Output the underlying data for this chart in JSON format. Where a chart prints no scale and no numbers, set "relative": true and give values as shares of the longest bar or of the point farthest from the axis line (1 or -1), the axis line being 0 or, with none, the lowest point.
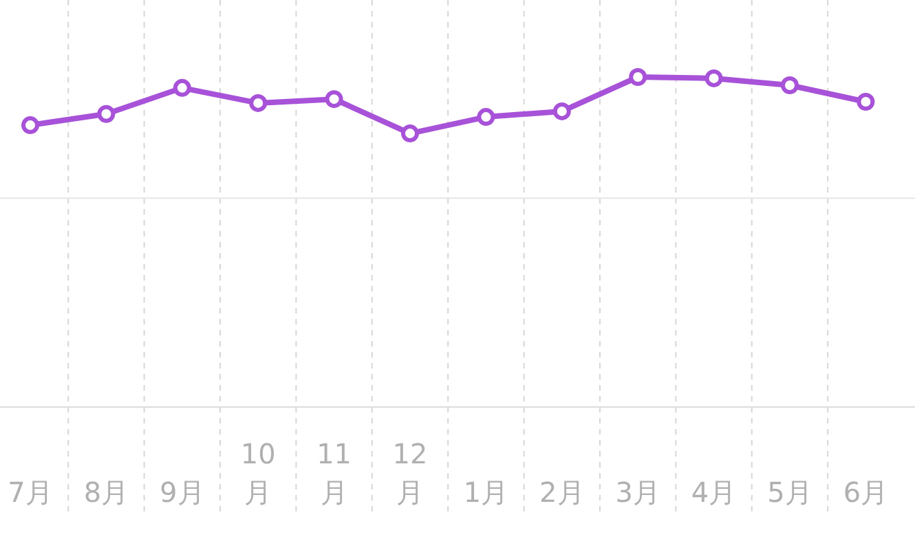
{
  "chart_data": {
    "type": "line",
    "relative": true,
    "categories": [
      "7月",
      "8月",
      "9月",
      "10月",
      "11月",
      "12月",
      "1月",
      "2月",
      "3月",
      "4月",
      "5月",
      "6月"
    ],
    "series": [
      {
        "color": "#a752d8",
        "values": [
          0.854,
          0.888,
          0.967,
          0.921,
          0.933,
          0.829,
          0.879,
          0.896,
          1,
          0.996,
          0.975,
          0.925
        ]
      }
    ],
    "marker": "circle",
    "grid": "x",
    "ref_lines": [
      {
        "axis": "y",
        "value": 0.633,
        "color": "#e6e6e6"
      }
    ]
  }
}
